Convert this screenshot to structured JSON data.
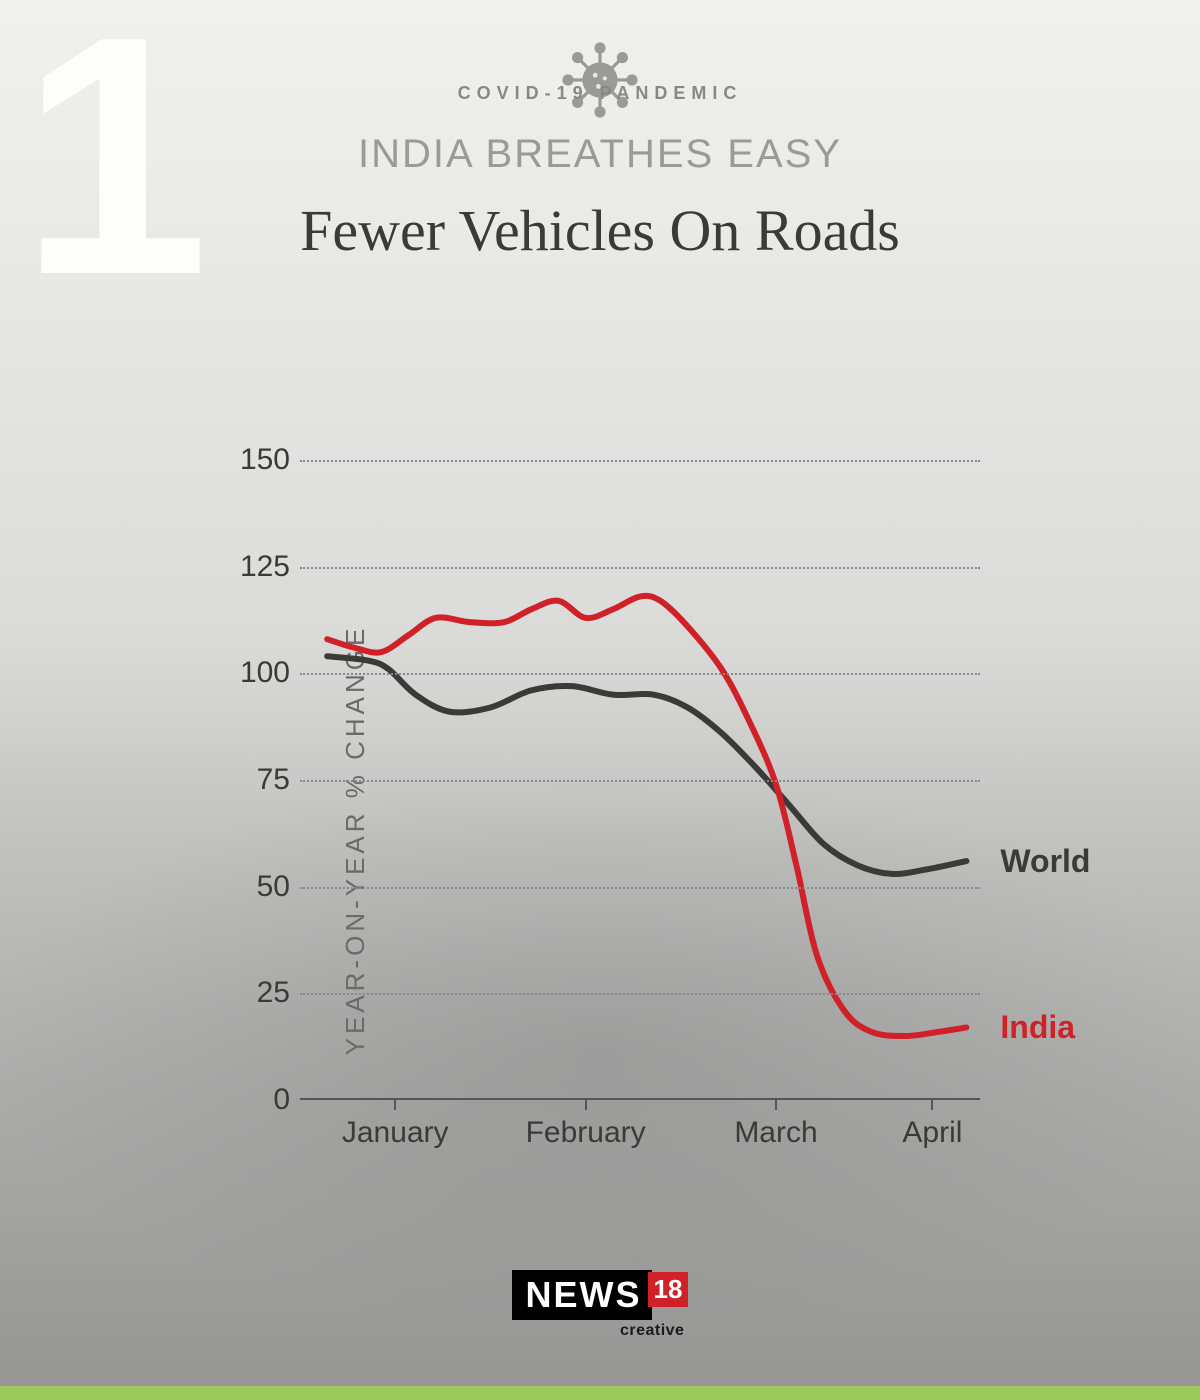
{
  "slide_number": "1",
  "header": {
    "pandemic_label": "COVID-19 PANDEMIC",
    "subtitle": "INDIA BREATHES EASY",
    "title": "Fewer Vehicles On Roads",
    "virus_icon_color": "#9a9a98"
  },
  "chart": {
    "type": "line",
    "ylabel": "YEAR-ON-YEAR % CHANGE",
    "ylim": [
      0,
      150
    ],
    "ytick_step": 25,
    "yticks": [
      0,
      25,
      50,
      75,
      100,
      125,
      150
    ],
    "xticks": [
      "January",
      "February",
      "March",
      "April"
    ],
    "xtick_positions": [
      0.14,
      0.42,
      0.7,
      0.93
    ],
    "grid_color": "#888888",
    "axis_color": "#555555",
    "tick_fontsize": 30,
    "label_fontsize": 26,
    "background_color": "transparent",
    "line_width": 6,
    "series": [
      {
        "name": "World",
        "color": "#3a3a38",
        "label_pos": {
          "x": 1.03,
          "y_val": 56
        },
        "points": [
          {
            "x": 0.04,
            "y": 104
          },
          {
            "x": 0.1,
            "y": 103
          },
          {
            "x": 0.13,
            "y": 101
          },
          {
            "x": 0.17,
            "y": 95
          },
          {
            "x": 0.22,
            "y": 91
          },
          {
            "x": 0.28,
            "y": 92
          },
          {
            "x": 0.34,
            "y": 96
          },
          {
            "x": 0.4,
            "y": 97
          },
          {
            "x": 0.46,
            "y": 95
          },
          {
            "x": 0.52,
            "y": 95
          },
          {
            "x": 0.57,
            "y": 92
          },
          {
            "x": 0.62,
            "y": 86
          },
          {
            "x": 0.67,
            "y": 78
          },
          {
            "x": 0.72,
            "y": 69
          },
          {
            "x": 0.77,
            "y": 60
          },
          {
            "x": 0.82,
            "y": 55
          },
          {
            "x": 0.87,
            "y": 53
          },
          {
            "x": 0.92,
            "y": 54
          },
          {
            "x": 0.98,
            "y": 56
          }
        ]
      },
      {
        "name": "India",
        "color": "#d02128",
        "label_pos": {
          "x": 1.03,
          "y_val": 17
        },
        "points": [
          {
            "x": 0.04,
            "y": 108
          },
          {
            "x": 0.08,
            "y": 106
          },
          {
            "x": 0.12,
            "y": 105
          },
          {
            "x": 0.16,
            "y": 109
          },
          {
            "x": 0.2,
            "y": 113
          },
          {
            "x": 0.25,
            "y": 112
          },
          {
            "x": 0.3,
            "y": 112
          },
          {
            "x": 0.34,
            "y": 115
          },
          {
            "x": 0.38,
            "y": 117
          },
          {
            "x": 0.42,
            "y": 113
          },
          {
            "x": 0.46,
            "y": 115
          },
          {
            "x": 0.5,
            "y": 118
          },
          {
            "x": 0.53,
            "y": 117
          },
          {
            "x": 0.57,
            "y": 111
          },
          {
            "x": 0.62,
            "y": 101
          },
          {
            "x": 0.66,
            "y": 89
          },
          {
            "x": 0.7,
            "y": 74
          },
          {
            "x": 0.73,
            "y": 55
          },
          {
            "x": 0.76,
            "y": 34
          },
          {
            "x": 0.8,
            "y": 21
          },
          {
            "x": 0.84,
            "y": 16
          },
          {
            "x": 0.89,
            "y": 15
          },
          {
            "x": 0.94,
            "y": 16
          },
          {
            "x": 0.98,
            "y": 17
          }
        ]
      }
    ]
  },
  "footer": {
    "brand_main": "NEWS",
    "brand_num": "18",
    "brand_sub": "creative",
    "brand_main_bg": "#000000",
    "brand_main_fg": "#ffffff",
    "brand_num_bg": "#d02128",
    "brand_num_fg": "#ffffff"
  },
  "accent_bar_color": "#9cc95a"
}
